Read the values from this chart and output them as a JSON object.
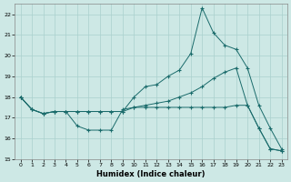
{
  "xlabel": "Humidex (Indice chaleur)",
  "xlim": [
    -0.5,
    23.5
  ],
  "ylim": [
    15,
    22.5
  ],
  "yticks": [
    15,
    16,
    17,
    18,
    19,
    20,
    21,
    22
  ],
  "xticks": [
    0,
    1,
    2,
    3,
    4,
    5,
    6,
    7,
    8,
    9,
    10,
    11,
    12,
    13,
    14,
    15,
    16,
    17,
    18,
    19,
    20,
    21,
    22,
    23
  ],
  "bg_color": "#cde8e5",
  "grid_color": "#aad0cd",
  "line_color": "#1a6b6b",
  "line1_x": [
    0,
    1,
    2,
    3,
    4,
    5,
    6,
    7,
    8,
    9,
    10,
    11,
    12,
    13,
    14,
    15,
    16,
    17,
    18,
    19,
    20,
    21,
    22,
    23
  ],
  "line1_y": [
    18.0,
    17.4,
    17.2,
    17.3,
    17.3,
    16.6,
    16.4,
    16.4,
    16.4,
    17.4,
    17.5,
    17.5,
    17.5,
    17.5,
    17.5,
    17.5,
    17.5,
    17.5,
    17.5,
    17.6,
    17.6,
    16.5,
    15.5,
    15.4
  ],
  "line2_x": [
    0,
    1,
    2,
    3,
    4,
    5,
    6,
    7,
    8,
    9,
    10,
    11,
    12,
    13,
    14,
    15,
    16,
    17,
    18,
    19,
    20,
    21,
    22,
    23
  ],
  "line2_y": [
    18.0,
    17.4,
    17.2,
    17.3,
    17.3,
    17.3,
    17.3,
    17.3,
    17.3,
    17.3,
    18.0,
    18.5,
    18.6,
    19.0,
    19.3,
    20.1,
    22.3,
    21.1,
    20.5,
    20.3,
    19.4,
    17.6,
    16.5,
    15.5
  ],
  "line3_x": [
    0,
    1,
    2,
    3,
    4,
    5,
    6,
    7,
    8,
    9,
    10,
    11,
    12,
    13,
    14,
    15,
    16,
    17,
    18,
    19,
    20,
    21,
    22,
    23
  ],
  "line3_y": [
    18.0,
    17.4,
    17.2,
    17.3,
    17.3,
    17.3,
    17.3,
    17.3,
    17.3,
    17.3,
    17.5,
    17.6,
    17.7,
    17.8,
    18.0,
    18.2,
    18.5,
    18.9,
    19.2,
    19.4,
    17.6,
    16.5,
    15.5,
    15.4
  ]
}
